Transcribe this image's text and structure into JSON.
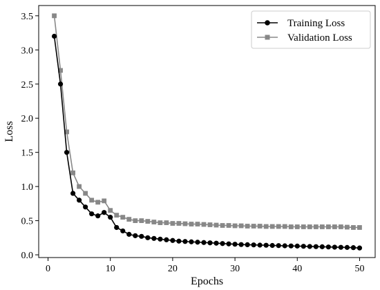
{
  "chart_data": {
    "type": "line",
    "title": "",
    "xlabel": "Epochs",
    "ylabel": "Loss",
    "xlim": [
      -1.5,
      52.5
    ],
    "ylim": [
      -0.04,
      3.65
    ],
    "xticks": [
      0,
      10,
      20,
      30,
      40,
      50
    ],
    "yticks": [
      0.0,
      0.5,
      1.0,
      1.5,
      2.0,
      2.5,
      3.0,
      3.5
    ],
    "ytick_labels": [
      "0.0",
      "0.5",
      "1.0",
      "1.5",
      "2.0",
      "2.5",
      "3.0",
      "3.5"
    ],
    "grid": false,
    "legend_position": "top-right",
    "x": [
      1,
      2,
      3,
      4,
      5,
      6,
      7,
      8,
      9,
      10,
      11,
      12,
      13,
      14,
      15,
      16,
      17,
      18,
      19,
      20,
      21,
      22,
      23,
      24,
      25,
      26,
      27,
      28,
      29,
      30,
      31,
      32,
      33,
      34,
      35,
      36,
      37,
      38,
      39,
      40,
      41,
      42,
      43,
      44,
      45,
      46,
      47,
      48,
      49,
      50
    ],
    "series": [
      {
        "name": "Training Loss",
        "color": "#000000",
        "marker": "circle",
        "values": [
          3.2,
          2.5,
          1.5,
          0.9,
          0.8,
          0.7,
          0.6,
          0.57,
          0.62,
          0.55,
          0.4,
          0.35,
          0.3,
          0.28,
          0.27,
          0.25,
          0.24,
          0.23,
          0.22,
          0.21,
          0.2,
          0.195,
          0.19,
          0.185,
          0.18,
          0.175,
          0.17,
          0.165,
          0.16,
          0.155,
          0.15,
          0.148,
          0.145,
          0.142,
          0.14,
          0.137,
          0.135,
          0.132,
          0.13,
          0.128,
          0.125,
          0.122,
          0.12,
          0.118,
          0.115,
          0.112,
          0.11,
          0.108,
          0.105,
          0.1
        ]
      },
      {
        "name": "Validation Loss",
        "color": "#888888",
        "marker": "square",
        "values": [
          3.5,
          2.7,
          1.8,
          1.2,
          1.0,
          0.9,
          0.8,
          0.77,
          0.79,
          0.65,
          0.58,
          0.55,
          0.52,
          0.5,
          0.5,
          0.49,
          0.48,
          0.47,
          0.47,
          0.46,
          0.46,
          0.455,
          0.45,
          0.45,
          0.445,
          0.44,
          0.435,
          0.43,
          0.43,
          0.425,
          0.425,
          0.42,
          0.42,
          0.42,
          0.415,
          0.415,
          0.415,
          0.415,
          0.41,
          0.41,
          0.41,
          0.41,
          0.41,
          0.41,
          0.41,
          0.41,
          0.41,
          0.405,
          0.4,
          0.4
        ]
      }
    ]
  }
}
